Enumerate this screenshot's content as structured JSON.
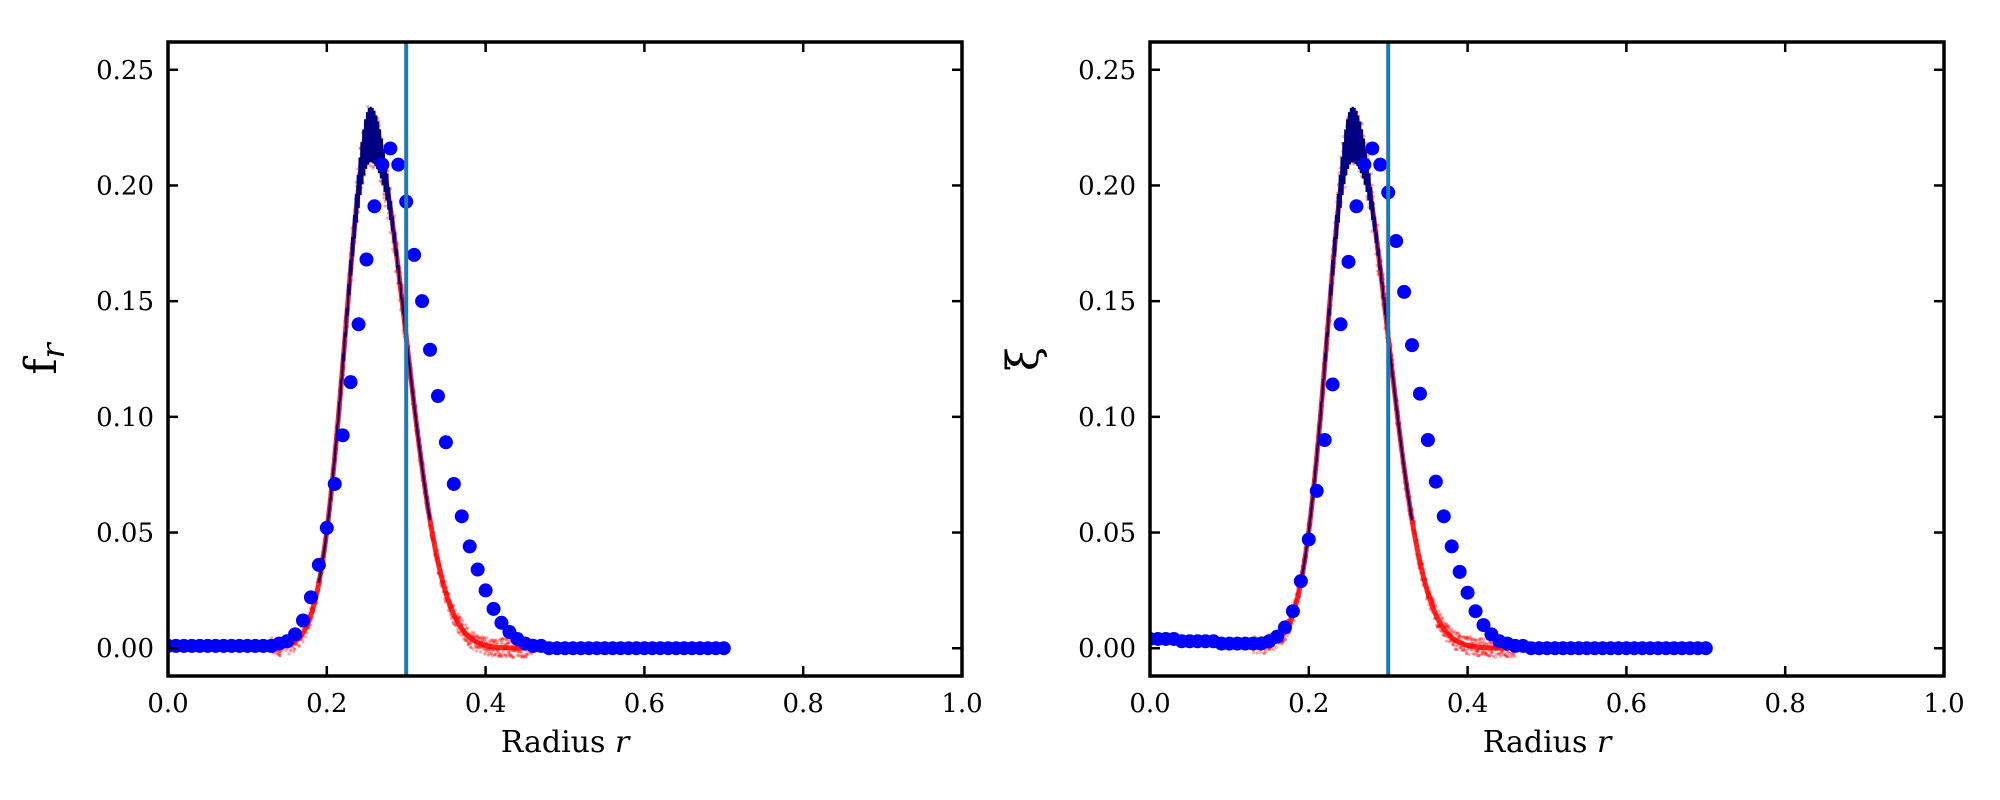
{
  "chart_data": [
    {
      "type": "scatter",
      "title": "",
      "xlabel": "Radius r",
      "xlabel_text": "Radius",
      "xlabel_var": "r",
      "ylabel": "f_r",
      "ylabel_main": "f",
      "ylabel_sub": "r",
      "xlim": [
        0.0,
        1.0
      ],
      "ylim": [
        -0.012,
        0.262
      ],
      "xticks": [
        0.0,
        0.2,
        0.4,
        0.6,
        0.8,
        1.0
      ],
      "xtick_labels": [
        "0.0",
        "0.2",
        "0.4",
        "0.6",
        "0.8",
        "1.0"
      ],
      "yticks": [
        0.0,
        0.05,
        0.1,
        0.15,
        0.2,
        0.25
      ],
      "ytick_labels": [
        "0.00",
        "0.05",
        "0.10",
        "0.15",
        "0.20",
        "0.25"
      ],
      "grid": false,
      "legend": "none",
      "vline_x": 0.3,
      "colors": {
        "points": "#0000ff",
        "band": "#ff0000",
        "line": "#000080",
        "vline": "#1f77b4"
      },
      "peak_center": 0.255,
      "peak_height": 0.222,
      "left_sigma": 0.032,
      "right_sigma": 0.045,
      "baseline_left": 0.001,
      "series": [
        {
          "x": [
            0.0,
            0.01,
            0.02,
            0.03,
            0.04,
            0.05,
            0.06,
            0.07,
            0.08,
            0.09,
            0.1,
            0.11,
            0.12,
            0.13,
            0.14,
            0.15,
            0.16,
            0.17,
            0.18,
            0.19,
            0.2,
            0.21,
            0.22,
            0.23,
            0.24,
            0.25,
            0.26,
            0.27,
            0.28,
            0.29,
            0.3,
            0.31,
            0.32,
            0.33,
            0.34,
            0.35,
            0.36,
            0.37,
            0.38,
            0.39,
            0.4,
            0.41,
            0.42,
            0.43,
            0.44,
            0.45,
            0.46,
            0.47,
            0.48,
            0.49,
            0.5,
            0.51,
            0.52,
            0.53,
            0.54,
            0.55,
            0.56,
            0.57,
            0.58,
            0.59,
            0.6,
            0.61,
            0.62,
            0.63,
            0.64,
            0.65,
            0.66,
            0.67,
            0.68,
            0.69,
            0.7
          ],
          "y": [
            0.001,
            0.001,
            0.001,
            0.001,
            0.001,
            0.001,
            0.001,
            0.001,
            0.001,
            0.001,
            0.001,
            0.001,
            0.001,
            0.001,
            0.002,
            0.003,
            0.006,
            0.012,
            0.022,
            0.036,
            0.052,
            0.071,
            0.092,
            0.115,
            0.14,
            0.168,
            0.191,
            0.209,
            0.216,
            0.209,
            0.193,
            0.17,
            0.15,
            0.129,
            0.109,
            0.089,
            0.071,
            0.057,
            0.044,
            0.034,
            0.025,
            0.017,
            0.011,
            0.007,
            0.004,
            0.002,
            0.001,
            0.001,
            0.0,
            0.0,
            0.0,
            0.0,
            0.0,
            0.0,
            0.0,
            0.0,
            0.0,
            0.0,
            0.0,
            0.0,
            0.0,
            0.0,
            0.0,
            0.0,
            0.0,
            0.0,
            0.0,
            0.0,
            0.0,
            0.0,
            0.0
          ]
        }
      ]
    },
    {
      "type": "scatter",
      "title": "",
      "xlabel": "Radius r",
      "xlabel_text": "Radius",
      "xlabel_var": "r",
      "ylabel": "ξ",
      "ylabel_main": "ξ",
      "ylabel_sub": "",
      "xlim": [
        0.0,
        1.0
      ],
      "ylim": [
        -0.012,
        0.262
      ],
      "xticks": [
        0.0,
        0.2,
        0.4,
        0.6,
        0.8,
        1.0
      ],
      "xtick_labels": [
        "0.0",
        "0.2",
        "0.4",
        "0.6",
        "0.8",
        "1.0"
      ],
      "yticks": [
        0.0,
        0.05,
        0.1,
        0.15,
        0.2,
        0.25
      ],
      "ytick_labels": [
        "0.00",
        "0.05",
        "0.10",
        "0.15",
        "0.20",
        "0.25"
      ],
      "grid": false,
      "legend": "none",
      "vline_x": 0.3,
      "colors": {
        "points": "#0000ff",
        "band": "#ff0000",
        "line": "#000080",
        "vline": "#1f77b4"
      },
      "peak_center": 0.255,
      "peak_height": 0.222,
      "left_sigma": 0.032,
      "right_sigma": 0.045,
      "baseline_left": 0.004,
      "series": [
        {
          "x": [
            0.0,
            0.01,
            0.02,
            0.03,
            0.04,
            0.05,
            0.06,
            0.07,
            0.08,
            0.09,
            0.1,
            0.11,
            0.12,
            0.13,
            0.14,
            0.15,
            0.16,
            0.17,
            0.18,
            0.19,
            0.2,
            0.21,
            0.22,
            0.23,
            0.24,
            0.25,
            0.26,
            0.27,
            0.28,
            0.29,
            0.3,
            0.31,
            0.32,
            0.33,
            0.34,
            0.35,
            0.36,
            0.37,
            0.38,
            0.39,
            0.4,
            0.41,
            0.42,
            0.43,
            0.44,
            0.45,
            0.46,
            0.47,
            0.48,
            0.49,
            0.5,
            0.51,
            0.52,
            0.53,
            0.54,
            0.55,
            0.56,
            0.57,
            0.58,
            0.59,
            0.6,
            0.61,
            0.62,
            0.63,
            0.64,
            0.65,
            0.66,
            0.67,
            0.68,
            0.69,
            0.7
          ],
          "y": [
            0.004,
            0.004,
            0.004,
            0.004,
            0.003,
            0.003,
            0.003,
            0.003,
            0.003,
            0.002,
            0.002,
            0.002,
            0.002,
            0.002,
            0.002,
            0.003,
            0.005,
            0.009,
            0.016,
            0.029,
            0.047,
            0.068,
            0.09,
            0.114,
            0.14,
            0.167,
            0.191,
            0.209,
            0.216,
            0.209,
            0.197,
            0.176,
            0.154,
            0.131,
            0.11,
            0.09,
            0.072,
            0.057,
            0.044,
            0.033,
            0.024,
            0.016,
            0.01,
            0.006,
            0.003,
            0.002,
            0.001,
            0.001,
            0.0,
            0.0,
            0.0,
            0.0,
            0.0,
            0.0,
            0.0,
            0.0,
            0.0,
            0.0,
            0.0,
            0.0,
            0.0,
            0.0,
            0.0,
            0.0,
            0.0,
            0.0,
            0.0,
            0.0,
            0.0,
            0.0,
            0.0
          ]
        }
      ]
    }
  ]
}
